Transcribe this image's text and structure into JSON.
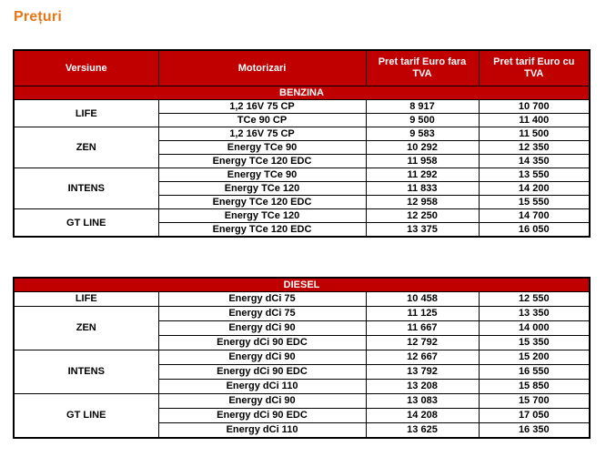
{
  "title": "Prețuri",
  "colors": {
    "header_red": "#c00000",
    "title_orange": "#e87617"
  },
  "table": {
    "column_headers": [
      "Versiune",
      "Motorizari",
      "Pret tarif Euro fara TVA",
      "Pret tarif Euro cu TVA"
    ],
    "sections": [
      {
        "label": "BENZINA",
        "groups": [
          {
            "version": "LIFE",
            "rows": [
              {
                "engine": "1,2 16V 75 CP",
                "price_no_vat": "8 917",
                "price_vat": "10 700"
              },
              {
                "engine": "TCe 90 CP",
                "price_no_vat": "9 500",
                "price_vat": "11 400"
              }
            ]
          },
          {
            "version": "ZEN",
            "rows": [
              {
                "engine": "1,2 16V 75 CP",
                "price_no_vat": "9 583",
                "price_vat": "11 500"
              },
              {
                "engine": "Energy TCe 90",
                "price_no_vat": "10 292",
                "price_vat": "12 350"
              },
              {
                "engine": "Energy TCe 120 EDC",
                "price_no_vat": "11 958",
                "price_vat": "14 350"
              }
            ]
          },
          {
            "version": "INTENS",
            "rows": [
              {
                "engine": "Energy TCe 90",
                "price_no_vat": "11 292",
                "price_vat": "13 550"
              },
              {
                "engine": "Energy TCe 120",
                "price_no_vat": "11 833",
                "price_vat": "14 200"
              },
              {
                "engine": "Energy TCe 120 EDC",
                "price_no_vat": "12 958",
                "price_vat": "15 550"
              }
            ]
          },
          {
            "version": "GT LINE",
            "rows": [
              {
                "engine": "Energy TCe 120",
                "price_no_vat": "12 250",
                "price_vat": "14 700"
              },
              {
                "engine": "Energy TCe 120 EDC",
                "price_no_vat": "13 375",
                "price_vat": "16 050"
              }
            ]
          }
        ]
      },
      {
        "label": "DIESEL",
        "groups": [
          {
            "version": "LIFE",
            "rows": [
              {
                "engine": "Energy dCi 75",
                "price_no_vat": "10 458",
                "price_vat": "12 550"
              }
            ]
          },
          {
            "version": "ZEN",
            "rows": [
              {
                "engine": "Energy dCi 75",
                "price_no_vat": "11 125",
                "price_vat": "13 350"
              },
              {
                "engine": "Energy dCi 90",
                "price_no_vat": "11 667",
                "price_vat": "14 000"
              },
              {
                "engine": "Energy dCi 90 EDC",
                "price_no_vat": "12 792",
                "price_vat": "15 350"
              }
            ]
          },
          {
            "version": "INTENS",
            "rows": [
              {
                "engine": "Energy dCi 90",
                "price_no_vat": "12 667",
                "price_vat": "15 200"
              },
              {
                "engine": "Energy dCi 90 EDC",
                "price_no_vat": "13 792",
                "price_vat": "16 550"
              },
              {
                "engine": "Energy dCi 110",
                "price_no_vat": "13 208",
                "price_vat": "15 850"
              }
            ]
          },
          {
            "version": "GT LINE",
            "rows": [
              {
                "engine": "Energy dCi 90",
                "price_no_vat": "13 083",
                "price_vat": "15 700"
              },
              {
                "engine": "Energy dCi 90 EDC",
                "price_no_vat": "14 208",
                "price_vat": "17 050"
              },
              {
                "engine": "Energy dCi 110",
                "price_no_vat": "13 625",
                "price_vat": "16 350"
              }
            ]
          }
        ]
      }
    ]
  }
}
